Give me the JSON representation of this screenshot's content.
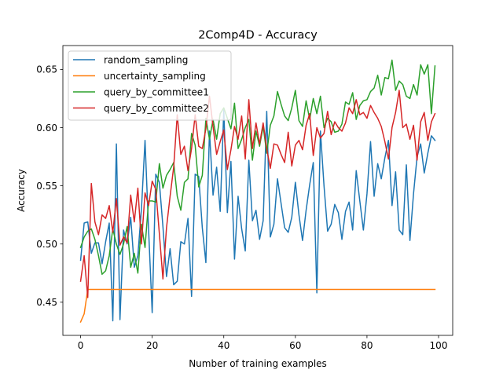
{
  "chart_data": {
    "type": "line",
    "title": "2Comp4D - Accuracy",
    "xlabel": "Number of training examples",
    "ylabel": "Accuracy",
    "xlim": [
      -4.95,
      103.95
    ],
    "ylim": [
      0.4215,
      0.6705
    ],
    "xticks": [
      0,
      20,
      40,
      60,
      80,
      100
    ],
    "xtick_labels": [
      "0",
      "20",
      "40",
      "60",
      "80",
      "100"
    ],
    "yticks": [
      0.45,
      0.5,
      0.55,
      0.6,
      0.65
    ],
    "ytick_labels": [
      "0.45",
      "0.50",
      "0.55",
      "0.60",
      "0.65"
    ],
    "grid": false,
    "legend_position": "top-left",
    "x": [
      0,
      1,
      2,
      3,
      4,
      5,
      6,
      7,
      8,
      9,
      10,
      11,
      12,
      13,
      14,
      15,
      16,
      17,
      18,
      19,
      20,
      21,
      22,
      23,
      24,
      25,
      26,
      27,
      28,
      29,
      30,
      31,
      32,
      33,
      34,
      35,
      36,
      37,
      38,
      39,
      40,
      41,
      42,
      43,
      44,
      45,
      46,
      47,
      48,
      49,
      50,
      51,
      52,
      53,
      54,
      55,
      56,
      57,
      58,
      59,
      60,
      61,
      62,
      63,
      64,
      65,
      66,
      67,
      68,
      69,
      70,
      71,
      72,
      73,
      74,
      75,
      76,
      77,
      78,
      79,
      80,
      81,
      82,
      83,
      84,
      85,
      86,
      87,
      88,
      89,
      90,
      91,
      92,
      93,
      94,
      95,
      96,
      97,
      98,
      99
    ],
    "series": [
      {
        "name": "random_sampling",
        "color": "#1f77b4",
        "values": [
          0.486,
          0.518,
          0.519,
          0.492,
          0.501,
          0.501,
          0.483,
          0.502,
          0.518,
          0.434,
          0.586,
          0.435,
          0.512,
          0.5,
          0.523,
          0.48,
          0.49,
          0.53,
          0.589,
          0.512,
          0.441,
          0.56,
          0.553,
          0.515,
          0.472,
          0.496,
          0.465,
          0.468,
          0.502,
          0.5,
          0.522,
          0.455,
          0.56,
          0.558,
          0.514,
          0.484,
          0.597,
          0.542,
          0.566,
          0.528,
          0.615,
          0.527,
          0.571,
          0.487,
          0.541,
          0.513,
          0.494,
          0.572,
          0.52,
          0.529,
          0.504,
          0.52,
          0.614,
          0.506,
          0.517,
          0.556,
          0.535,
          0.514,
          0.51,
          0.523,
          0.553,
          0.525,
          0.503,
          0.529,
          0.551,
          0.57,
          0.458,
          0.597,
          0.55,
          0.511,
          0.517,
          0.534,
          0.527,
          0.504,
          0.528,
          0.536,
          0.512,
          0.563,
          0.537,
          0.512,
          0.543,
          0.588,
          0.541,
          0.569,
          0.556,
          0.574,
          0.589,
          0.533,
          0.562,
          0.512,
          0.508,
          0.568,
          0.503,
          0.543,
          0.575,
          0.586,
          0.561,
          0.578,
          0.593,
          0.589
        ]
      },
      {
        "name": "uncertainty_sampling",
        "color": "#ff7f0e",
        "values": [
          0.433,
          0.44,
          0.461,
          0.461,
          0.461,
          0.461,
          0.461,
          0.461,
          0.461,
          0.461,
          0.461,
          0.461,
          0.461,
          0.461,
          0.461,
          0.461,
          0.461,
          0.461,
          0.461,
          0.461,
          0.461,
          0.461,
          0.461,
          0.461,
          0.461,
          0.461,
          0.461,
          0.461,
          0.461,
          0.461,
          0.461,
          0.461,
          0.461,
          0.461,
          0.461,
          0.461,
          0.461,
          0.461,
          0.461,
          0.461,
          0.461,
          0.461,
          0.461,
          0.461,
          0.461,
          0.461,
          0.461,
          0.461,
          0.461,
          0.461,
          0.461,
          0.461,
          0.461,
          0.461,
          0.461,
          0.461,
          0.461,
          0.461,
          0.461,
          0.461,
          0.461,
          0.461,
          0.461,
          0.461,
          0.461,
          0.461,
          0.461,
          0.461,
          0.461,
          0.461,
          0.461,
          0.461,
          0.461,
          0.461,
          0.461,
          0.461,
          0.461,
          0.461,
          0.461,
          0.461,
          0.461,
          0.461,
          0.461,
          0.461,
          0.461,
          0.461,
          0.461,
          0.461,
          0.461,
          0.461,
          0.461,
          0.461,
          0.461,
          0.461,
          0.461,
          0.461,
          0.461,
          0.461,
          0.461,
          0.461
        ]
      },
      {
        "name": "query_by_committee1",
        "color": "#2ca02c",
        "values": [
          0.497,
          0.506,
          0.511,
          0.513,
          0.504,
          0.49,
          0.474,
          0.477,
          0.49,
          0.513,
          0.5,
          0.491,
          0.5,
          0.515,
          0.48,
          0.492,
          0.475,
          0.517,
          0.497,
          0.537,
          0.537,
          0.536,
          0.569,
          0.548,
          0.559,
          0.564,
          0.57,
          0.541,
          0.529,
          0.553,
          0.556,
          0.595,
          0.585,
          0.549,
          0.559,
          0.608,
          0.59,
          0.607,
          0.59,
          0.612,
          0.617,
          0.608,
          0.599,
          0.621,
          0.582,
          0.59,
          0.6,
          0.607,
          0.572,
          0.597,
          0.584,
          0.601,
          0.578,
          0.602,
          0.61,
          0.631,
          0.62,
          0.61,
          0.606,
          0.617,
          0.632,
          0.606,
          0.601,
          0.623,
          0.607,
          0.625,
          0.612,
          0.627,
          0.6,
          0.608,
          0.605,
          0.596,
          0.597,
          0.603,
          0.622,
          0.62,
          0.63,
          0.607,
          0.619,
          0.623,
          0.624,
          0.631,
          0.634,
          0.645,
          0.628,
          0.643,
          0.642,
          0.658,
          0.632,
          0.64,
          0.637,
          0.627,
          0.625,
          0.637,
          0.628,
          0.654,
          0.646,
          0.654,
          0.612,
          0.653
        ]
      },
      {
        "name": "query_by_committee2",
        "color": "#d62728",
        "values": [
          0.468,
          0.49,
          0.454,
          0.552,
          0.519,
          0.508,
          0.525,
          0.522,
          0.533,
          0.51,
          0.539,
          0.499,
          0.506,
          0.501,
          0.542,
          0.519,
          0.548,
          0.5,
          0.544,
          0.533,
          0.554,
          0.547,
          0.509,
          0.47,
          0.514,
          0.541,
          0.566,
          0.611,
          0.577,
          0.584,
          0.563,
          0.582,
          0.611,
          0.584,
          0.582,
          0.599,
          0.627,
          0.601,
          0.577,
          0.588,
          0.598,
          0.564,
          0.581,
          0.601,
          0.59,
          0.61,
          0.573,
          0.624,
          0.582,
          0.604,
          0.586,
          0.604,
          0.582,
          0.565,
          0.586,
          0.585,
          0.577,
          0.57,
          0.596,
          0.567,
          0.585,
          0.589,
          0.581,
          0.602,
          0.612,
          0.576,
          0.6,
          0.591,
          0.595,
          0.614,
          0.594,
          0.605,
          0.6,
          0.597,
          0.604,
          0.617,
          0.612,
          0.624,
          0.611,
          0.613,
          0.608,
          0.619,
          0.613,
          0.608,
          0.601,
          0.588,
          0.573,
          0.6,
          0.613,
          0.632,
          0.6,
          0.603,
          0.59,
          0.602,
          0.572,
          0.605,
          0.613,
          0.589,
          0.605,
          0.612
        ]
      }
    ]
  }
}
